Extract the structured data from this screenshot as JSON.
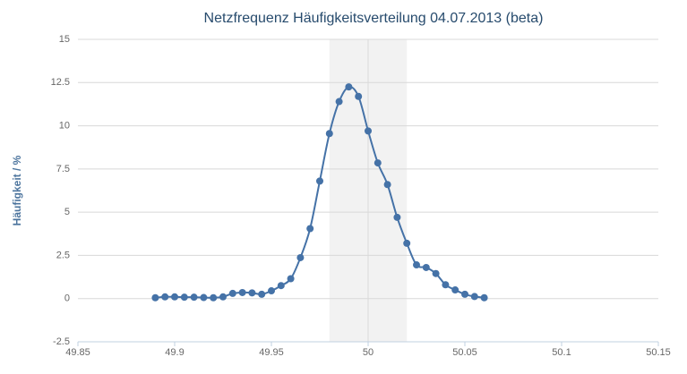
{
  "chart_data": {
    "type": "line",
    "title": "Netzfrequenz Häufigkeitsverteilung 04.07.2013 (beta)",
    "y_label": "Häufigkeit / %",
    "x": [
      49.89,
      49.895,
      49.9,
      49.905,
      49.91,
      49.915,
      49.92,
      49.925,
      49.93,
      49.935,
      49.94,
      49.945,
      49.95,
      49.955,
      49.96,
      49.965,
      49.97,
      49.975,
      49.98,
      49.985,
      49.99,
      49.995,
      50,
      50.005,
      50.01,
      50.015,
      50.02,
      50.025,
      50.03,
      50.035,
      50.04,
      50.045,
      50.05,
      50.055,
      50.06
    ],
    "series": [
      {
        "color": "#4572a7",
        "values": [
          0.05,
          0.1,
          0.1,
          0.08,
          0.08,
          0.06,
          0.05,
          0.1,
          0.3,
          0.35,
          0.33,
          0.25,
          0.45,
          0.75,
          1.15,
          2.37,
          4.05,
          6.8,
          9.55,
          11.4,
          12.25,
          11.7,
          9.7,
          7.85,
          6.6,
          4.7,
          3.2,
          1.95,
          1.8,
          1.45,
          0.8,
          0.5,
          0.25,
          0.12,
          0.05
        ]
      }
    ],
    "xlim": [
      49.85,
      50.15
    ],
    "xticks": [
      49.85,
      49.9,
      49.95,
      50,
      50.05,
      50.1,
      50.15
    ],
    "ylim": [
      -2.5,
      15
    ],
    "yticks": [
      -2.5,
      0,
      2.5,
      5,
      7.5,
      10,
      12.5,
      15
    ],
    "plot_band": [
      49.98,
      50.02
    ],
    "plot_line": 50,
    "grid": true
  }
}
